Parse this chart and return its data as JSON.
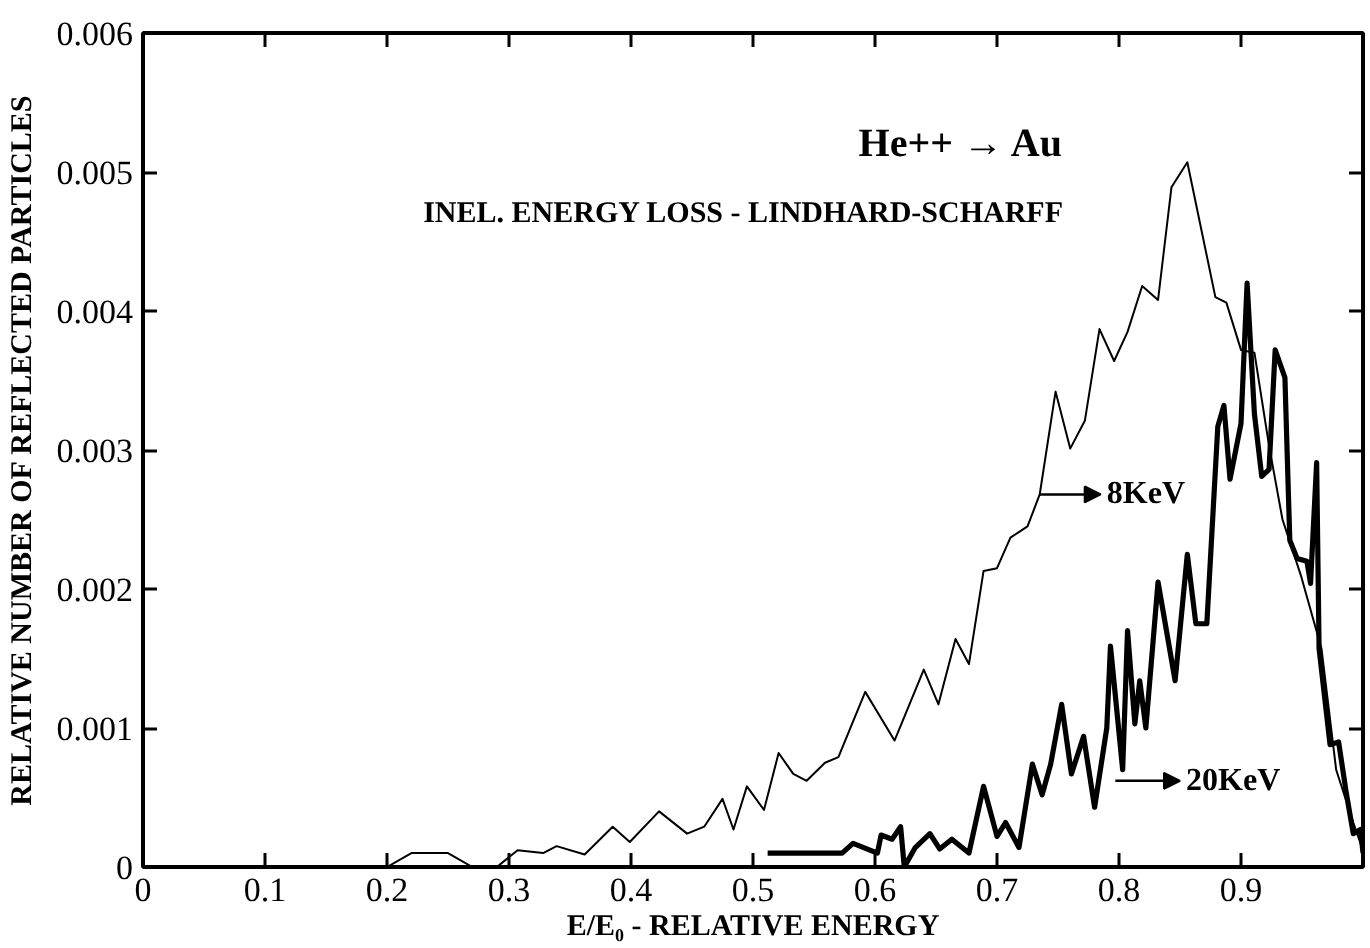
{
  "chart_data": {
    "type": "line",
    "xlabel": "E/E₀ - RELATIVE ENERGY",
    "ylabel": "RELATIVE NUMBER OF REFLECTED PARTICLES",
    "annotations": [
      "He++ → Au",
      "INEL. ENERGY LOSS - LINDHARD-SCHARFF"
    ],
    "xlim": [
      0,
      1.0
    ],
    "ylim": [
      0,
      0.006
    ],
    "xticks": [
      0,
      0.1,
      0.2,
      0.3,
      0.4,
      0.5,
      0.6,
      0.7,
      0.8,
      0.9
    ],
    "yticks": [
      0,
      0.001,
      0.002,
      0.003,
      0.004,
      0.005,
      0.006
    ],
    "grid": false,
    "legend": "right",
    "marker": "none",
    "line_style": "solid",
    "series": [
      {
        "name": "8KeV",
        "color": "#000000",
        "x": [
          0.05,
          0.08,
          0.1,
          0.15,
          0.2,
          0.22,
          0.25,
          0.27,
          0.29,
          0.307,
          0.328,
          0.339,
          0.362,
          0.385,
          0.399,
          0.423,
          0.446,
          0.46,
          0.475,
          0.484,
          0.495,
          0.509,
          0.521,
          0.533,
          0.544,
          0.559,
          0.57,
          0.592,
          0.616,
          0.64,
          0.652,
          0.666,
          0.677,
          0.689,
          0.7,
          0.711,
          0.725,
          0.735,
          0.748,
          0.76,
          0.772,
          0.784,
          0.796,
          0.807,
          0.819,
          0.832,
          0.843,
          0.856,
          0.879,
          0.888,
          0.9,
          0.911,
          0.923,
          0.934,
          0.949,
          0.966,
          0.978,
          0.992,
          1.0
        ],
        "values": [
          0,
          0,
          0,
          0,
          0,
          0.0001,
          0.0001,
          0,
          0,
          0.00012,
          0.0001,
          0.00015,
          9e-05,
          0.00029,
          0.00018,
          0.0004,
          0.00024,
          0.00029,
          0.00049,
          0.00027,
          0.00058,
          0.00041,
          0.00082,
          0.00067,
          0.00062,
          0.00075,
          0.00079,
          0.00126,
          0.00091,
          0.00142,
          0.00117,
          0.00164,
          0.00146,
          0.00213,
          0.00215,
          0.00237,
          0.00245,
          0.00268,
          0.00342,
          0.00301,
          0.00321,
          0.00387,
          0.00364,
          0.00385,
          0.00418,
          0.00408,
          0.00489,
          0.00507,
          0.0041,
          0.00406,
          0.00372,
          0.0037,
          0.00303,
          0.0025,
          0.0021,
          0.00157,
          0.0007,
          0.00032,
          0.00012
        ]
      },
      {
        "name": "20KeV",
        "color": "#000000",
        "x": [
          0.512,
          0.573,
          0.582,
          0.602,
          0.605,
          0.614,
          0.621,
          0.624,
          0.633,
          0.645,
          0.653,
          0.663,
          0.677,
          0.689,
          0.7,
          0.707,
          0.718,
          0.729,
          0.737,
          0.744,
          0.753,
          0.761,
          0.771,
          0.78,
          0.79,
          0.793,
          0.803,
          0.807,
          0.813,
          0.817,
          0.822,
          0.832,
          0.846,
          0.856,
          0.863,
          0.872,
          0.881,
          0.886,
          0.891,
          0.9,
          0.905,
          0.911,
          0.917,
          0.923,
          0.928,
          0.936,
          0.94,
          0.946,
          0.954,
          0.957,
          0.962,
          0.964,
          0.973,
          0.98,
          0.986,
          0.992,
          0.998,
          1.0
        ],
        "values": [
          0.0001,
          0.0001,
          0.00017,
          0.0001,
          0.00023,
          0.0002,
          0.00029,
          0,
          0.00014,
          0.00024,
          0.00013,
          0.0002,
          0.0001,
          0.00058,
          0.00022,
          0.00032,
          0.00014,
          0.00074,
          0.00052,
          0.00074,
          0.00117,
          0.00067,
          0.00094,
          0.00043,
          0.001,
          0.00159,
          0.0007,
          0.0017,
          0.00103,
          0.00134,
          0.001,
          0.00205,
          0.00134,
          0.00225,
          0.00175,
          0.00175,
          0.00317,
          0.00332,
          0.00279,
          0.00319,
          0.0042,
          0.00326,
          0.00281,
          0.00286,
          0.00372,
          0.00352,
          0.00235,
          0.00222,
          0.0022,
          0.00204,
          0.00291,
          0.00157,
          0.00088,
          0.0009,
          0.00055,
          0.00024,
          0.00027,
          0.0001
        ]
      }
    ]
  }
}
